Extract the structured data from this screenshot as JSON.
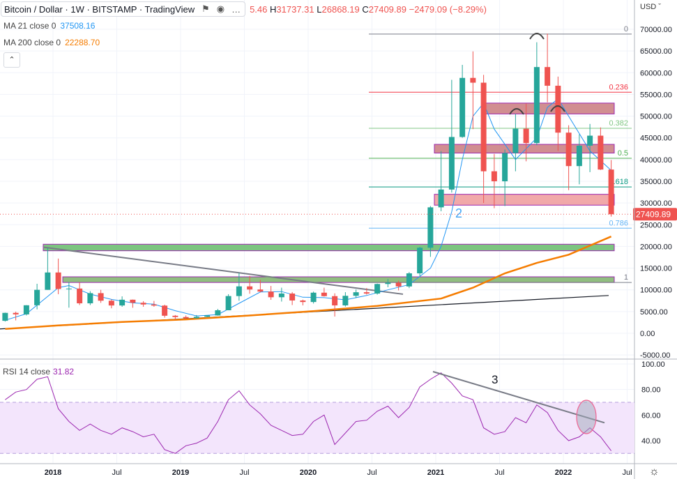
{
  "header": {
    "symbol": "Bitcoin / Dollar · 1W · BITSTAMP · TradingView",
    "ohlc_open_partial": "5.46",
    "high_label": "H",
    "high": "31737.31",
    "low_label": "L",
    "low": "26868.19",
    "close_label": "C",
    "close": "27409.89",
    "change": "−2479.09 (−8.29%)",
    "ma21_label": "MA 21 close 0",
    "ma21_value": "37508.16",
    "ma200_label": "MA 200 close 0",
    "ma200_value": "22288.70",
    "collapse_icon": "chevron-up-icon",
    "currency": "USD"
  },
  "rsi_legend": {
    "label": "RSI 14 close",
    "value": "31.82"
  },
  "colors": {
    "up": "#26a69a",
    "down": "#ef5350",
    "ma21": "#2196f3",
    "ma200": "#f57c00",
    "rsi": "#9c27b0",
    "rsi_band": "#f3e5fc"
  },
  "chart_data": [
    {
      "type": "candlestick",
      "title": "Bitcoin / Dollar · 1W · BITSTAMP",
      "ylim": [
        -5000,
        72000
      ],
      "y_ticks": [
        "70000.00",
        "65000.00",
        "60000.00",
        "55000.00",
        "50000.00",
        "45000.00",
        "40000.00",
        "35000.00",
        "30000.00",
        "25000.00",
        "20000.00",
        "15000.00",
        "10000.00",
        "5000.00",
        "0.00",
        "-5000.00"
      ],
      "x_ticks": [
        [
          "2018",
          "2018-01"
        ],
        [
          "Jul",
          "2018-07"
        ],
        [
          "2019",
          "2019-01"
        ],
        [
          "Jul",
          "2019-07"
        ],
        [
          "2020",
          "2020-01"
        ],
        [
          "Jul",
          "2020-07"
        ],
        [
          "2021",
          "2021-01"
        ],
        [
          "Jul",
          "2021-07"
        ],
        [
          "2022",
          "2022-01"
        ],
        [
          "Jul",
          "2022-07"
        ]
      ],
      "last_price": "27409.89",
      "ohlc": [
        [
          "2017-08",
          2870,
          4750,
          2700,
          4700
        ],
        [
          "2017-09",
          4700,
          4980,
          2970,
          4350
        ],
        [
          "2017-10",
          4350,
          6470,
          4100,
          6450
        ],
        [
          "2017-11",
          6450,
          11400,
          5500,
          10000
        ],
        [
          "2017-12",
          10000,
          19660,
          10000,
          14000
        ],
        [
          "2018-01",
          14000,
          17200,
          9000,
          10200
        ],
        [
          "2018-02",
          10200,
          11800,
          5900,
          10300
        ],
        [
          "2018-03",
          10300,
          11700,
          6500,
          6900
        ],
        [
          "2018-04",
          6900,
          9700,
          6500,
          9240
        ],
        [
          "2018-05",
          9240,
          10000,
          7000,
          7500
        ],
        [
          "2018-06",
          7500,
          7800,
          5750,
          6400
        ],
        [
          "2018-07",
          6400,
          8500,
          6100,
          7730
        ],
        [
          "2018-08",
          7730,
          7770,
          5880,
          7030
        ],
        [
          "2018-09",
          7030,
          7400,
          6100,
          6630
        ],
        [
          "2018-10",
          6630,
          7450,
          6100,
          6370
        ],
        [
          "2018-11",
          6370,
          6580,
          3600,
          4040
        ],
        [
          "2018-12",
          4040,
          4200,
          3150,
          3740
        ],
        [
          "2019-01",
          3740,
          4100,
          3350,
          3460
        ],
        [
          "2019-02",
          3460,
          4200,
          3380,
          3800
        ],
        [
          "2019-03",
          3800,
          4150,
          3680,
          4100
        ],
        [
          "2019-04",
          4100,
          5600,
          4050,
          5300
        ],
        [
          "2019-05",
          5300,
          9000,
          5300,
          8570
        ],
        [
          "2019-06",
          8570,
          13880,
          7500,
          10800
        ],
        [
          "2019-07",
          10800,
          13200,
          9100,
          10080
        ],
        [
          "2019-08",
          10080,
          12300,
          9400,
          9600
        ],
        [
          "2019-09",
          9600,
          10900,
          7700,
          8300
        ],
        [
          "2019-10",
          8300,
          10500,
          7300,
          9150
        ],
        [
          "2019-11",
          9150,
          9500,
          6500,
          7550
        ],
        [
          "2019-12",
          7550,
          7750,
          6430,
          7200
        ],
        [
          "2020-01",
          7200,
          9600,
          6850,
          9350
        ],
        [
          "2020-02",
          9350,
          10500,
          8450,
          8550
        ],
        [
          "2020-03",
          8550,
          9200,
          3850,
          6420
        ],
        [
          "2020-04",
          6420,
          9470,
          6150,
          8630
        ],
        [
          "2020-05",
          8630,
          10080,
          8100,
          9450
        ],
        [
          "2020-06",
          9450,
          10400,
          8900,
          9140
        ],
        [
          "2020-07",
          9140,
          11450,
          8900,
          11350
        ],
        [
          "2020-08",
          11350,
          12480,
          10600,
          11650
        ],
        [
          "2020-09",
          11650,
          12100,
          9880,
          10780
        ],
        [
          "2020-10",
          10780,
          14100,
          10400,
          13800
        ],
        [
          "2020-11",
          13800,
          19900,
          13200,
          19700
        ],
        [
          "2020-12",
          19700,
          29300,
          17600,
          29000
        ],
        [
          "2021-01",
          29000,
          41950,
          28100,
          33100
        ],
        [
          "2021-02",
          33100,
          58350,
          32400,
          45200
        ],
        [
          "2021-03",
          45200,
          61800,
          45000,
          58800
        ],
        [
          "2021-04",
          58800,
          64900,
          47000,
          57700
        ],
        [
          "2021-05",
          57700,
          59500,
          30000,
          37300
        ],
        [
          "2021-06",
          37300,
          41300,
          28800,
          35000
        ],
        [
          "2021-07",
          35000,
          42300,
          29300,
          41500
        ],
        [
          "2021-08",
          41500,
          50500,
          37300,
          47100
        ],
        [
          "2021-09",
          47100,
          52900,
          39600,
          43800
        ],
        [
          "2021-10",
          43800,
          67000,
          43300,
          61300
        ],
        [
          "2021-11",
          61300,
          69000,
          53200,
          57000
        ],
        [
          "2021-12",
          57000,
          59100,
          42000,
          46200
        ],
        [
          "2022-01",
          46200,
          47900,
          32950,
          38500
        ],
        [
          "2022-02",
          38500,
          45800,
          34300,
          43200
        ],
        [
          "2022-03",
          43200,
          48200,
          37100,
          45500
        ],
        [
          "2022-04",
          45500,
          47400,
          37600,
          37700
        ],
        [
          "2022-05",
          37700,
          39900,
          26868,
          27410
        ]
      ],
      "series": [
        {
          "name": "MA 21 close 0",
          "points": [
            [
              "2017-08",
              3000
            ],
            [
              "2017-10",
              4500
            ],
            [
              "2017-12",
              8500
            ],
            [
              "2018-01",
              10500
            ],
            [
              "2018-02",
              11000
            ],
            [
              "2018-03",
              10000
            ],
            [
              "2018-04",
              9000
            ],
            [
              "2018-06",
              7800
            ],
            [
              "2018-08",
              7000
            ],
            [
              "2018-10",
              6700
            ],
            [
              "2018-12",
              5200
            ],
            [
              "2019-02",
              4000
            ],
            [
              "2019-04",
              4300
            ],
            [
              "2019-06",
              6900
            ],
            [
              "2019-08",
              9500
            ],
            [
              "2019-10",
              9600
            ],
            [
              "2019-12",
              8300
            ],
            [
              "2020-02",
              8200
            ],
            [
              "2020-04",
              7700
            ],
            [
              "2020-06",
              8700
            ],
            [
              "2020-08",
              10000
            ],
            [
              "2020-10",
              11200
            ],
            [
              "2020-12",
              15000
            ],
            [
              "2021-01",
              20000
            ],
            [
              "2021-02",
              28000
            ],
            [
              "2021-03",
              40000
            ],
            [
              "2021-04",
              50000
            ],
            [
              "2021-05",
              53000
            ],
            [
              "2021-06",
              47000
            ],
            [
              "2021-08",
              40000
            ],
            [
              "2021-10",
              45000
            ],
            [
              "2021-11",
              52000
            ],
            [
              "2021-12",
              54000
            ],
            [
              "2022-01",
              50000
            ],
            [
              "2022-03",
              42000
            ],
            [
              "2022-05",
              37508
            ]
          ]
        },
        {
          "name": "MA 200 close 0",
          "points": [
            [
              "2017-08",
              1000
            ],
            [
              "2018-01",
              1800
            ],
            [
              "2018-07",
              2600
            ],
            [
              "2019-01",
              3200
            ],
            [
              "2019-07",
              4100
            ],
            [
              "2020-01",
              5100
            ],
            [
              "2020-07",
              6300
            ],
            [
              "2021-01",
              8000
            ],
            [
              "2021-04",
              10500
            ],
            [
              "2021-07",
              13800
            ],
            [
              "2021-10",
              16200
            ],
            [
              "2022-01",
              18100
            ],
            [
              "2022-05",
              22288
            ]
          ]
        }
      ],
      "fib_levels": [
        {
          "label": "0",
          "price": 68900,
          "color": "#787b86"
        },
        {
          "label": "0.236",
          "price": 55500,
          "color": "#f23645"
        },
        {
          "label": "0.382",
          "price": 47200,
          "color": "#81c784"
        },
        {
          "label": "0.5",
          "price": 40300,
          "color": "#4caf50"
        },
        {
          "label": "0.618",
          "price": 33700,
          "color": "#089981"
        },
        {
          "label": "0.786",
          "price": 24200,
          "color": "#64b5f6"
        },
        {
          "label": "1",
          "price": 11700,
          "color": "#787b86"
        }
      ],
      "annotations": {
        "wave_label_2": "2"
      }
    },
    {
      "type": "line",
      "title": "RSI 14 close",
      "ylim": [
        25,
        100
      ],
      "y_ticks": [
        "100.00",
        "80.00",
        "60.00",
        "40.00"
      ],
      "bands": [
        30,
        70
      ],
      "annotations": {
        "wave_label_3": "3"
      },
      "series": [
        {
          "name": "RSI 14 close",
          "points": [
            [
              "2017-08",
              72
            ],
            [
              "2017-09",
              78
            ],
            [
              "2017-10",
              80
            ],
            [
              "2017-11",
              88
            ],
            [
              "2017-12",
              90
            ],
            [
              "2018-01",
              65
            ],
            [
              "2018-02",
              55
            ],
            [
              "2018-03",
              48
            ],
            [
              "2018-04",
              53
            ],
            [
              "2018-05",
              48
            ],
            [
              "2018-06",
              45
            ],
            [
              "2018-07",
              50
            ],
            [
              "2018-08",
              47
            ],
            [
              "2018-09",
              43
            ],
            [
              "2018-10",
              45
            ],
            [
              "2018-11",
              33
            ],
            [
              "2018-12",
              30
            ],
            [
              "2019-01",
              36
            ],
            [
              "2019-02",
              38
            ],
            [
              "2019-03",
              42
            ],
            [
              "2019-04",
              55
            ],
            [
              "2019-05",
              72
            ],
            [
              "2019-06",
              79
            ],
            [
              "2019-07",
              68
            ],
            [
              "2019-08",
              61
            ],
            [
              "2019-09",
              52
            ],
            [
              "2019-10",
              48
            ],
            [
              "2019-11",
              44
            ],
            [
              "2019-12",
              45
            ],
            [
              "2020-01",
              55
            ],
            [
              "2020-02",
              60
            ],
            [
              "2020-03",
              37
            ],
            [
              "2020-04",
              46
            ],
            [
              "2020-05",
              55
            ],
            [
              "2020-06",
              56
            ],
            [
              "2020-07",
              63
            ],
            [
              "2020-08",
              67
            ],
            [
              "2020-09",
              58
            ],
            [
              "2020-10",
              66
            ],
            [
              "2020-11",
              82
            ],
            [
              "2020-12",
              88
            ],
            [
              "2021-01",
              93
            ],
            [
              "2021-02",
              85
            ],
            [
              "2021-03",
              75
            ],
            [
              "2021-04",
              72
            ],
            [
              "2021-05",
              50
            ],
            [
              "2021-06",
              45
            ],
            [
              "2021-07",
              47
            ],
            [
              "2021-08",
              58
            ],
            [
              "2021-09",
              54
            ],
            [
              "2021-10",
              68
            ],
            [
              "2021-11",
              62
            ],
            [
              "2021-12",
              48
            ],
            [
              "2022-01",
              40
            ],
            [
              "2022-02",
              43
            ],
            [
              "2022-03",
              50
            ],
            [
              "2022-04",
              43
            ],
            [
              "2022-05",
              32
            ]
          ]
        }
      ]
    }
  ]
}
